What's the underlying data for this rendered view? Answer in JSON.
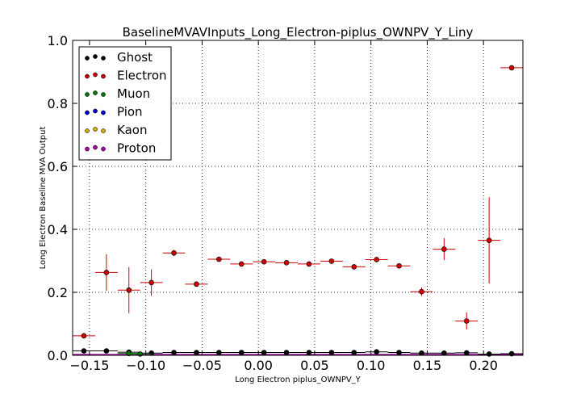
{
  "chart_data": {
    "type": "scatter",
    "title": "BaselineMVAVInputs_Long_Electron-piplus_OWNPV_Y_Liny",
    "xlabel": "Long Electron piplus_OWNPV_Y",
    "ylabel": "Long Electron Baseline MVA Output",
    "xlim": [
      -0.165,
      0.235
    ],
    "ylim": [
      0.0,
      1.0
    ],
    "xticks": [
      -0.15,
      -0.1,
      -0.05,
      0.0,
      0.05,
      0.1,
      0.15,
      0.2
    ],
    "xtick_labels": [
      "−0.15",
      "−0.10",
      "−0.05",
      "0.00",
      "0.05",
      "0.10",
      "0.15",
      "0.20"
    ],
    "yticks": [
      0.0,
      0.2,
      0.4,
      0.6,
      0.8,
      1.0
    ],
    "ytick_labels": [
      "0.0",
      "0.2",
      "0.4",
      "0.6",
      "0.8",
      "1.0"
    ],
    "grid": true,
    "legend_position": "top-left",
    "x_bin_half_width": 0.01,
    "series": [
      {
        "name": "Ghost",
        "color": "#000000",
        "points": [
          {
            "x": -0.155,
            "y": 0.014
          },
          {
            "x": -0.135,
            "y": 0.014
          },
          {
            "x": -0.115,
            "y": 0.01
          },
          {
            "x": -0.095,
            "y": 0.007
          },
          {
            "x": -0.075,
            "y": 0.009
          },
          {
            "x": -0.055,
            "y": 0.009
          },
          {
            "x": -0.035,
            "y": 0.009
          },
          {
            "x": -0.015,
            "y": 0.009
          },
          {
            "x": 0.005,
            "y": 0.009
          },
          {
            "x": 0.025,
            "y": 0.009
          },
          {
            "x": 0.045,
            "y": 0.009
          },
          {
            "x": 0.065,
            "y": 0.009
          },
          {
            "x": 0.085,
            "y": 0.009
          },
          {
            "x": 0.105,
            "y": 0.011
          },
          {
            "x": 0.125,
            "y": 0.009
          },
          {
            "x": 0.145,
            "y": 0.007
          },
          {
            "x": 0.165,
            "y": 0.007
          },
          {
            "x": 0.185,
            "y": 0.008
          },
          {
            "x": 0.205,
            "y": 0.004
          },
          {
            "x": 0.225,
            "y": 0.005
          }
        ]
      },
      {
        "name": "Electron",
        "color": "#cc0000",
        "points": [
          {
            "x": -0.155,
            "y": 0.062,
            "err": 0.004
          },
          {
            "x": -0.135,
            "y": 0.263,
            "err": 0.058
          },
          {
            "x": -0.115,
            "y": 0.207,
            "err": 0.073
          },
          {
            "x": -0.095,
            "y": 0.231,
            "err": 0.042
          },
          {
            "x": -0.075,
            "y": 0.325,
            "err": 0.01
          },
          {
            "x": -0.055,
            "y": 0.226,
            "err": 0.006
          },
          {
            "x": -0.035,
            "y": 0.305,
            "err": 0.004
          },
          {
            "x": -0.015,
            "y": 0.29,
            "err": 0.003
          },
          {
            "x": 0.005,
            "y": 0.297,
            "err": 0.003
          },
          {
            "x": 0.025,
            "y": 0.294,
            "err": 0.003
          },
          {
            "x": 0.045,
            "y": 0.29,
            "err": 0.003
          },
          {
            "x": 0.065,
            "y": 0.299,
            "err": 0.004
          },
          {
            "x": 0.085,
            "y": 0.281,
            "err": 0.004
          },
          {
            "x": 0.105,
            "y": 0.304,
            "err": 0.006
          },
          {
            "x": 0.125,
            "y": 0.284,
            "err": 0.005
          },
          {
            "x": 0.145,
            "y": 0.202,
            "err": 0.013
          },
          {
            "x": 0.165,
            "y": 0.337,
            "err": 0.035
          },
          {
            "x": 0.185,
            "y": 0.109,
            "err": 0.027
          },
          {
            "x": 0.205,
            "y": 0.365,
            "err": 0.137
          },
          {
            "x": 0.225,
            "y": 0.913,
            "err": 0.003
          }
        ]
      },
      {
        "name": "Muon",
        "color": "#007700",
        "points": [
          {
            "x": -0.115,
            "y": 0.006
          },
          {
            "x": -0.105,
            "y": 0.004
          }
        ]
      },
      {
        "name": "Pion",
        "color": "#0000cc",
        "points": []
      },
      {
        "name": "Kaon",
        "color": "#ccaa00",
        "points": []
      },
      {
        "name": "Proton",
        "color": "#aa00aa",
        "points": []
      }
    ]
  }
}
